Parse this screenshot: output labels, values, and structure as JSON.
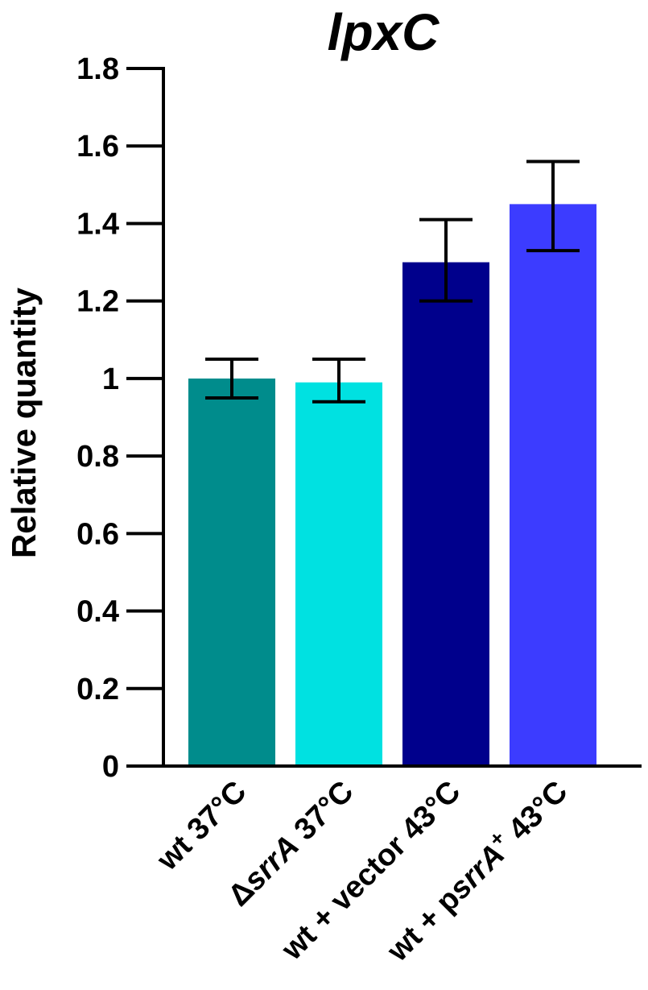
{
  "chart_data": {
    "type": "bar",
    "title": "lpxC",
    "xlabel": "",
    "ylabel": "Relative quantity",
    "ylim": [
      0,
      1.8
    ],
    "yticks": [
      0,
      0.2,
      0.4,
      0.6,
      0.8,
      1,
      1.2,
      1.4,
      1.6,
      1.8
    ],
    "ytick_labels": [
      "0",
      "0.2",
      "0.4",
      "0.6",
      "0.8",
      "1",
      "1.2",
      "1.4",
      "1.6",
      "1.8"
    ],
    "categories": [
      {
        "parts": [
          {
            "t": "wt 37°C",
            "i": false
          }
        ]
      },
      {
        "parts": [
          {
            "t": "Δ",
            "i": false
          },
          {
            "t": "srrA",
            "i": true
          },
          {
            "t": " 37°C",
            "i": false
          }
        ]
      },
      {
        "parts": [
          {
            "t": "wt + vector 43°C",
            "i": false
          }
        ]
      },
      {
        "parts": [
          {
            "t": "wt + p",
            "i": false
          },
          {
            "t": "srrA",
            "i": true
          },
          {
            "t": "+",
            "i": false,
            "sup": true
          },
          {
            "t": " 43°C",
            "i": false
          }
        ]
      }
    ],
    "values": [
      1.0,
      0.99,
      1.3,
      1.45
    ],
    "error_upper": [
      1.05,
      1.05,
      1.41,
      1.56
    ],
    "error_lower": [
      0.95,
      0.94,
      1.2,
      1.33
    ],
    "colors": [
      "#008C8C",
      "#00E1E1",
      "#00008C",
      "#3C3CFF"
    ],
    "grid": false
  }
}
